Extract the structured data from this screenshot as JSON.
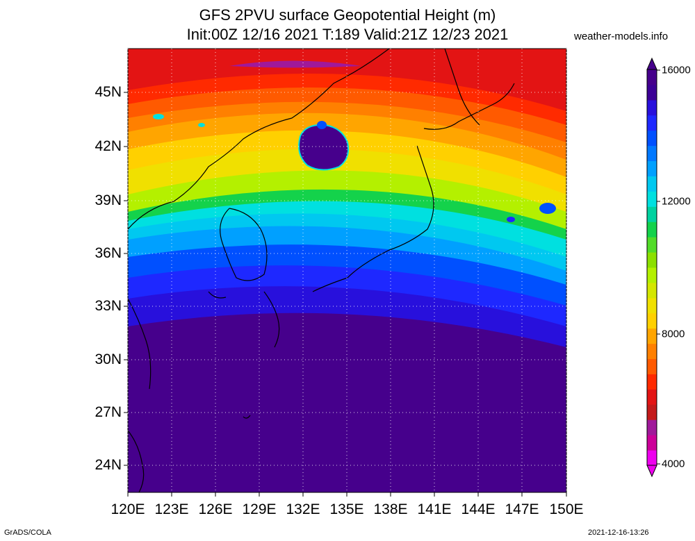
{
  "title": {
    "line1": "GFS 2PVU surface Geopotential Height (m)",
    "line2": "Init:00Z 12/16 2021 T:189 Valid:21Z 12/23 2021"
  },
  "site": "weather-models.info",
  "lat_ticks": [
    "45N",
    "42N",
    "39N",
    "36N",
    "33N",
    "30N",
    "27N",
    "24N"
  ],
  "lon_ticks": [
    "120E",
    "123E",
    "126E",
    "129E",
    "132E",
    "135E",
    "138E",
    "141E",
    "144E",
    "147E",
    "150E"
  ],
  "colorbar": {
    "labels": [
      "16000",
      "12000",
      "8000",
      "4000"
    ],
    "colors": [
      "#ee00ee",
      "#cc0099",
      "#a0199a",
      "#c31a1a",
      "#e31414",
      "#ff2a00",
      "#ff5a00",
      "#ff8000",
      "#ffa500",
      "#ffd000",
      "#f0e000",
      "#d4e600",
      "#b4f000",
      "#8ce000",
      "#52dc28",
      "#14d24b",
      "#00d2a0",
      "#00e0e0",
      "#00c8f0",
      "#00a0ff",
      "#0078ff",
      "#0050ff",
      "#1e28ff",
      "#2810dc",
      "#3c0096",
      "#46008c"
    ]
  },
  "footer": {
    "left": "GrADS/COLA",
    "right": "2021-12-16-13:26"
  }
}
